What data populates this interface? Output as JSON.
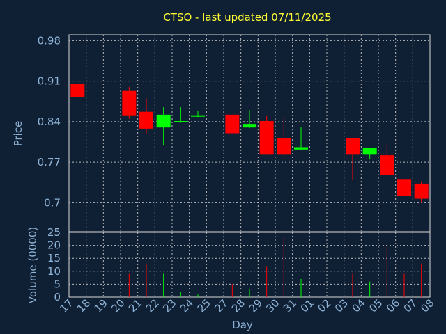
{
  "chart_data": {
    "type": "candlestick",
    "title": "CTSO - last updated 07/11/2025",
    "xlabel": "Day",
    "ylabel_price": "Price",
    "ylabel_volume": "Volume (0000)",
    "price_ticks": [
      "0.98",
      "0.91",
      "0.84",
      "0.77",
      "0.7"
    ],
    "volume_ticks": [
      "25",
      "20",
      "15",
      "10",
      "5",
      "0"
    ],
    "ylim_price": [
      0.65,
      0.99
    ],
    "ylim_volume": [
      0,
      25
    ],
    "x_tick_labels": [
      "17",
      "18",
      "19",
      "20",
      "21",
      "22",
      "23",
      "24",
      "25",
      "27",
      "28",
      "29",
      "30",
      "31",
      "01",
      "02",
      "03",
      "04",
      "05",
      "06",
      "07",
      "08"
    ],
    "colors": {
      "up": "#00ff00",
      "down": "#ff0000",
      "background": "#0f2034",
      "title": "#ffff33",
      "axis_text": "#8fb3d6"
    },
    "grid": true,
    "candles": [
      {
        "day": "17",
        "open": 0.905,
        "close": 0.883,
        "high": 0.905,
        "low": 0.883,
        "volume": 0
      },
      {
        "day": "20",
        "open": 0.893,
        "close": 0.851,
        "high": 0.9,
        "low": 0.845,
        "volume": 9
      },
      {
        "day": "21",
        "open": 0.857,
        "close": 0.828,
        "high": 0.88,
        "low": 0.82,
        "volume": 13
      },
      {
        "day": "22",
        "open": 0.83,
        "close": 0.852,
        "high": 0.865,
        "low": 0.8,
        "volume": 9
      },
      {
        "day": "23",
        "open": 0.84,
        "close": 0.841,
        "high": 0.865,
        "low": 0.838,
        "volume": 2
      },
      {
        "day": "24",
        "open": 0.849,
        "close": 0.851,
        "high": 0.858,
        "low": 0.848,
        "volume": 1
      },
      {
        "day": "27",
        "open": 0.852,
        "close": 0.82,
        "high": 0.852,
        "low": 0.82,
        "volume": 5
      },
      {
        "day": "28",
        "open": 0.83,
        "close": 0.836,
        "high": 0.86,
        "low": 0.829,
        "volume": 3
      },
      {
        "day": "29",
        "open": 0.841,
        "close": 0.783,
        "high": 0.85,
        "low": 0.783,
        "volume": 12
      },
      {
        "day": "30",
        "open": 0.812,
        "close": 0.783,
        "high": 0.85,
        "low": 0.775,
        "volume": 23
      },
      {
        "day": "31",
        "open": 0.792,
        "close": 0.796,
        "high": 0.83,
        "low": 0.791,
        "volume": 7
      },
      {
        "day": "03",
        "open": 0.811,
        "close": 0.783,
        "high": 0.811,
        "low": 0.74,
        "volume": 9
      },
      {
        "day": "04",
        "open": 0.783,
        "close": 0.795,
        "high": 0.795,
        "low": 0.775,
        "volume": 6
      },
      {
        "day": "05",
        "open": 0.782,
        "close": 0.748,
        "high": 0.8,
        "low": 0.748,
        "volume": 20
      },
      {
        "day": "06",
        "open": 0.741,
        "close": 0.712,
        "high": 0.741,
        "low": 0.712,
        "volume": 9
      },
      {
        "day": "07",
        "open": 0.733,
        "close": 0.707,
        "high": 0.737,
        "low": 0.7,
        "volume": 13
      }
    ]
  }
}
